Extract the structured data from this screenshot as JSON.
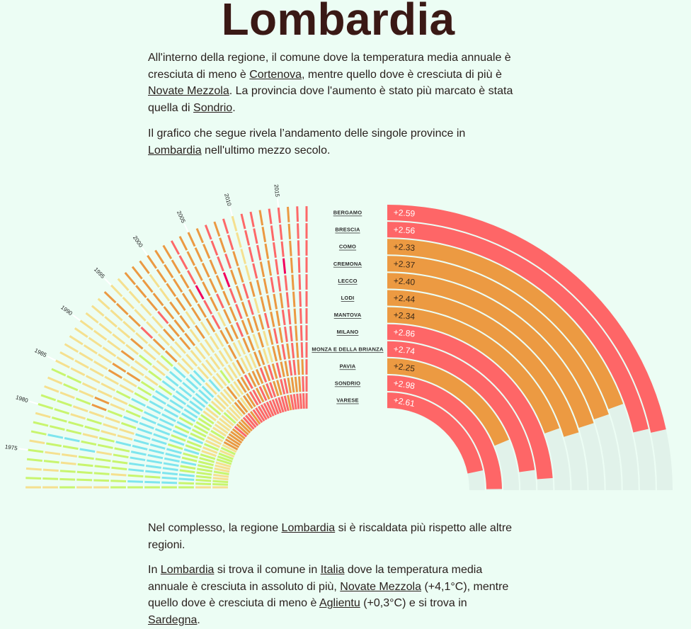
{
  "page": {
    "title": "Lombardia"
  },
  "intro": {
    "p1": [
      "All'interno della regione, il comune dove la temperatura media annuale è cresciuta di meno è ",
      "Cortenova",
      ", mentre quello dove è cresciuta di più è ",
      "Novate Mezzola",
      ". La provincia dove l'aumento è stato più marcato è stata quella di ",
      "Sondrio",
      "."
    ],
    "p2": [
      "Il grafico che segue rivela l’andamento delle singole province in ",
      "Lombardia",
      " nell'ultimo mezzo secolo."
    ]
  },
  "outro": {
    "p3": [
      "Nel complesso, la regione ",
      "Lombardia",
      " si è riscaldata più rispetto alle altre regioni."
    ],
    "p4": [
      "In ",
      "Lombardia",
      " si trova il comune in ",
      "Italia",
      " dove la temperatura media annuale è cresciuta in assoluto di più, ",
      "Novate Mezzola",
      " (+4,1°C), mentre quello dove è cresciuta di meno è ",
      "Aglientu",
      " (+0,3°C) e si trova in ",
      "Sardegna",
      "."
    ]
  },
  "chart_data": [
    {
      "type": "heatmap",
      "layout": "radial",
      "title": "",
      "years": [
        1971,
        1972,
        1973,
        1974,
        1975,
        1976,
        1977,
        1978,
        1979,
        1980,
        1981,
        1982,
        1983,
        1984,
        1985,
        1986,
        1987,
        1988,
        1989,
        1990,
        1991,
        1992,
        1993,
        1994,
        1995,
        1996,
        1997,
        1998,
        1999,
        2000,
        2001,
        2002,
        2003,
        2004,
        2005,
        2006,
        2007,
        2008,
        2009,
        2010,
        2011,
        2012,
        2013,
        2014,
        2015,
        2016,
        2017,
        2018
      ],
      "provinces": [
        "BERGAMO",
        "BRESCIA",
        "COMO",
        "CREMONA",
        "LECCO",
        "LODI",
        "MANTOVA",
        "MILANO",
        "MONZA E DELLA BRIANZA",
        "PAVIA",
        "SONDRIO",
        "VARESE"
      ],
      "cell_order": "each string lists provinces from BERGAMO (outer ring) to VARESE (inner ring)",
      "cells": [
        "yygyygggggyy",
        "ggggggcccggg",
        "yygggyggccgg",
        "ggygggccccgy",
        "gyygggcccggy",
        "yggcygcccggg",
        "gccgggccccgy",
        "gggygccccggy",
        "ygggyycccggy",
        "ggygyyccgcgg",
        "ggyyygcccgyg",
        "yygogcccggyg",
        "ygyoygccccgy",
        "ggyyygccggyg",
        "yyyygccccgyy",
        "yyyyygccggyo",
        "yyyoygcccggo",
        "yyyoogcccgyo",
        "yyyyyygccgyo",
        "yyyoygcccyyo",
        "yyyygycccyyo",
        "yyyoyycccgyr",
        "yyyyygcccygo",
        "ooorooyccyyo",
        "yyyyyyycyyyo",
        "yyyyoyyycyyr",
        "ooorooyyyyor",
        "ooooooyyyoor",
        "oyyooyyygyyo",
        "ooooyoyyyyor",
        "oooooyyyyoor",
        "ooooooyyyorr",
        "rrrmrrooorrr",
        "oooooyoyyoor",
        "oooorooyyorr",
        "ooooooroyoor",
        "rrrmrrooorrr",
        "oorooooyoorr",
        "rroorrooyror",
        "yyyyoyoyyoor",
        "rrrrooroorrr",
        "rrroooorooro",
        "ooooroooroor",
        "rrrrrorroror",
        "rrrmrrrrrror",
        "ooooooooooor",
        "rrrrrrrrrorr",
        "rrrrrrrrrrrr"
      ],
      "tick_labels": [
        "1975",
        "1980",
        "1985",
        "1990",
        "1995",
        "2000",
        "2005",
        "2010",
        "2015"
      ],
      "category_colors": {
        "c": "#7ee5ee",
        "g": "#c8f56e",
        "y": "#f5e08f",
        "o": "#eb9942",
        "r": "#fd6868",
        "m": "#f2005e"
      },
      "tick_line_color": "#ffffff"
    },
    {
      "type": "bar",
      "layout": "radial",
      "title": "",
      "categories": [
        "BERGAMO",
        "BRESCIA",
        "COMO",
        "CREMONA",
        "LECCO",
        "LODI",
        "MANTOVA",
        "MILANO",
        "MONZA E DELLA BRIANZA",
        "PAVIA",
        "SONDRIO",
        "VARESE"
      ],
      "values": [
        2.59,
        2.56,
        2.33,
        2.37,
        2.4,
        2.44,
        2.34,
        2.86,
        2.74,
        2.25,
        2.98,
        2.61
      ],
      "value_labels": [
        "+2.59",
        "+2.56",
        "+2.33",
        "+2.37",
        "+2.40",
        "+2.44",
        "+2.34",
        "+2.86",
        "+2.74",
        "+2.25",
        "+2.98",
        "+2.61"
      ],
      "unit": "°C",
      "max": 3,
      "threshold": 2.5,
      "colors": {
        "high": "#fe6667",
        "low": "#ec9a42",
        "track": "#e1f2ea",
        "label_on_high": "#ffffff",
        "label_on_low": "#3b2a1a"
      }
    }
  ]
}
